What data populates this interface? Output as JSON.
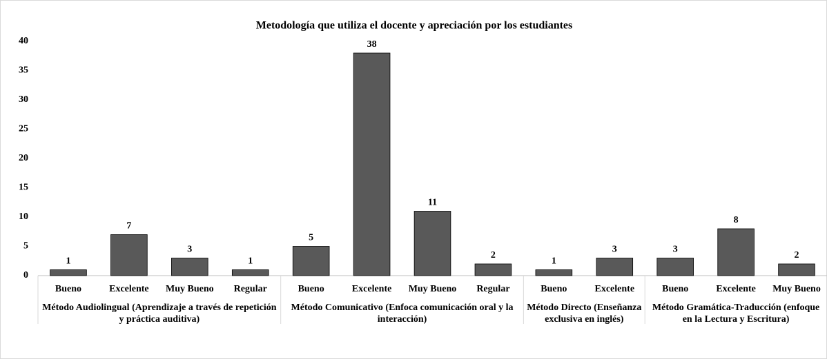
{
  "chart_data": {
    "type": "bar",
    "title": "Metodología que utiliza el docente y apreciación por los estudiantes",
    "groups": [
      {
        "name": "Método Audiolingual (Aprendizaje a través de repetición y práctica auditiva)",
        "categories": [
          "Bueno",
          "Excelente",
          "Muy Bueno",
          "Regular"
        ],
        "values": [
          1,
          7,
          3,
          1
        ]
      },
      {
        "name": "Método Comunicativo (Enfoca comunicación oral y la interacción)",
        "categories": [
          "Bueno",
          "Excelente",
          "Muy Bueno",
          "Regular"
        ],
        "values": [
          5,
          38,
          11,
          2
        ]
      },
      {
        "name": "Método Directo (Enseñanza exclusiva en inglés)",
        "categories": [
          "Bueno",
          "Excelente"
        ],
        "values": [
          1,
          3
        ]
      },
      {
        "name": "Método Gramática-Traducción (enfoque en la Lectura y Escritura)",
        "categories": [
          "Bueno",
          "Excelente",
          "Muy Bueno"
        ],
        "values": [
          3,
          8,
          2
        ]
      }
    ],
    "color": "#595959",
    "ylim": [
      0,
      40
    ],
    "yticks": [
      0,
      5,
      10,
      15,
      20,
      25,
      30,
      35,
      40
    ],
    "grid": false
  }
}
